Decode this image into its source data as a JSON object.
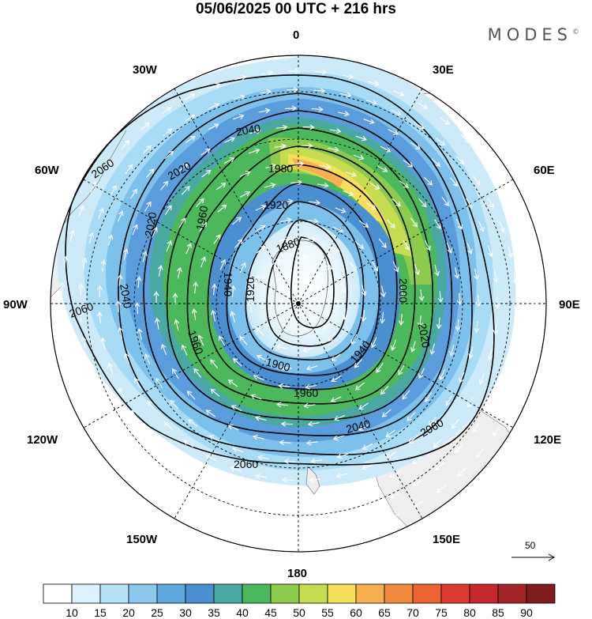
{
  "title": "05/06/2025  00 UTC  + 216 hrs",
  "logo": "MODES",
  "logo_mark": "©",
  "longitude_labels": {
    "lon_0": "0",
    "lon_30e": "30E",
    "lon_60e": "60E",
    "lon_90e": "90E",
    "lon_120e": "120E",
    "lon_150e": "150E",
    "lon_180": "180",
    "lon_150w": "150W",
    "lon_120w": "120W",
    "lon_90w": "90W",
    "lon_60w": "60W",
    "lon_30w": "30W"
  },
  "contour_labels": [
    "2060",
    "2040",
    "2020",
    "1980",
    "1960",
    "1920",
    "1880",
    "1940",
    "1900",
    "2000",
    "1960",
    "1960",
    "2040",
    "2060",
    "2060",
    "2040",
    "2060",
    "2020",
    "1920",
    "1940",
    "2020"
  ],
  "vector_reference": "50",
  "colorbar": {
    "labels": [
      "10",
      "15",
      "20",
      "25",
      "30",
      "35",
      "40",
      "45",
      "50",
      "55",
      "60",
      "65",
      "70",
      "75",
      "80",
      "85",
      "90"
    ],
    "colors": [
      "#ffffff",
      "#dcf1fc",
      "#b5e2f8",
      "#8ac8ee",
      "#5fa8de",
      "#4a8fd0",
      "#4aa8a2",
      "#4cb85c",
      "#8ccb4c",
      "#c6dc50",
      "#f6e05a",
      "#f6b050",
      "#f28a3e",
      "#ea6434",
      "#dc3c30",
      "#c42a30",
      "#a22428",
      "#7e1c1e"
    ]
  }
}
